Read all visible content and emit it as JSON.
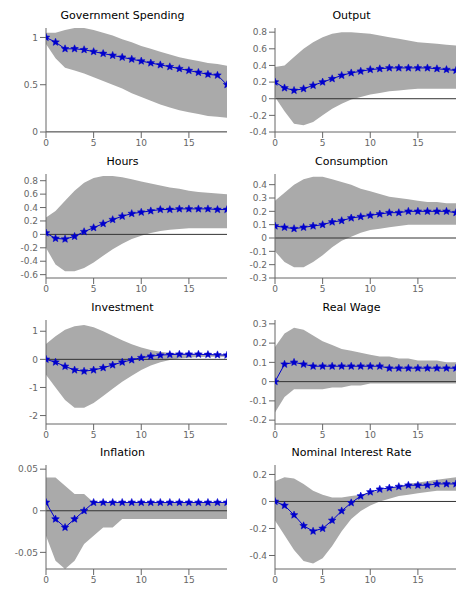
{
  "chart_data": [
    {
      "type": "line",
      "title": "Government Spending",
      "x": [
        0,
        1,
        2,
        3,
        4,
        5,
        6,
        7,
        8,
        9,
        10,
        11,
        12,
        13,
        14,
        15,
        16,
        17,
        18,
        19
      ],
      "xlim": [
        0,
        19
      ],
      "xticks": [
        0,
        5,
        10,
        15
      ],
      "ylim": [
        0,
        1.1
      ],
      "yticks": [
        0,
        0.5,
        1
      ],
      "grid": false,
      "series": [
        {
          "type": "area",
          "color": "#aaaaaa",
          "lower": [
            0.93,
            0.78,
            0.68,
            0.65,
            0.62,
            0.58,
            0.54,
            0.5,
            0.46,
            0.41,
            0.37,
            0.33,
            0.29,
            0.26,
            0.23,
            0.21,
            0.19,
            0.17,
            0.16,
            0.15
          ],
          "upper": [
            1.05,
            1.05,
            1.08,
            1.1,
            1.1,
            1.08,
            1.05,
            1.02,
            0.98,
            0.95,
            0.91,
            0.88,
            0.85,
            0.82,
            0.79,
            0.77,
            0.75,
            0.73,
            0.72,
            0.7
          ]
        },
        {
          "type": "hline",
          "y": 0,
          "color": "#333333"
        },
        {
          "type": "line",
          "color": "#0000cc",
          "marker": "star",
          "values": [
            1.0,
            0.95,
            0.88,
            0.88,
            0.87,
            0.85,
            0.83,
            0.81,
            0.79,
            0.77,
            0.75,
            0.73,
            0.71,
            0.69,
            0.67,
            0.65,
            0.63,
            0.61,
            0.6,
            0.5
          ]
        }
      ]
    },
    {
      "type": "line",
      "title": "Output",
      "x": [
        0,
        1,
        2,
        3,
        4,
        5,
        6,
        7,
        8,
        9,
        10,
        11,
        12,
        13,
        14,
        15,
        16,
        17,
        18,
        19
      ],
      "xlim": [
        0,
        19
      ],
      "xticks": [
        0,
        5,
        10,
        15
      ],
      "ylim": [
        -0.4,
        0.85
      ],
      "yticks": [
        -0.4,
        -0.2,
        0,
        0.2,
        0.4,
        0.6,
        0.8
      ],
      "grid": false,
      "series": [
        {
          "type": "area",
          "color": "#aaaaaa",
          "lower": [
            0.02,
            -0.15,
            -0.3,
            -0.32,
            -0.28,
            -0.2,
            -0.12,
            -0.06,
            -0.01,
            0.02,
            0.05,
            0.07,
            0.09,
            0.1,
            0.11,
            0.12,
            0.12,
            0.12,
            0.12,
            0.12
          ],
          "upper": [
            0.38,
            0.4,
            0.5,
            0.6,
            0.68,
            0.74,
            0.78,
            0.8,
            0.8,
            0.79,
            0.78,
            0.76,
            0.74,
            0.72,
            0.7,
            0.68,
            0.67,
            0.66,
            0.65,
            0.64
          ]
        },
        {
          "type": "hline",
          "y": 0,
          "color": "#333333"
        },
        {
          "type": "line",
          "color": "#0000cc",
          "marker": "star",
          "values": [
            0.2,
            0.13,
            0.1,
            0.12,
            0.16,
            0.2,
            0.24,
            0.28,
            0.31,
            0.33,
            0.35,
            0.36,
            0.37,
            0.37,
            0.37,
            0.37,
            0.37,
            0.36,
            0.35,
            0.34
          ]
        }
      ]
    },
    {
      "type": "line",
      "title": "Hours",
      "x": [
        0,
        1,
        2,
        3,
        4,
        5,
        6,
        7,
        8,
        9,
        10,
        11,
        12,
        13,
        14,
        15,
        16,
        17,
        18,
        19
      ],
      "xlim": [
        0,
        19
      ],
      "xticks": [
        0,
        5,
        10,
        15
      ],
      "ylim": [
        -0.65,
        0.9
      ],
      "yticks": [
        -0.6,
        -0.4,
        -0.2,
        0,
        0.2,
        0.4,
        0.6,
        0.8
      ],
      "grid": false,
      "series": [
        {
          "type": "area",
          "color": "#aaaaaa",
          "lower": [
            -0.2,
            -0.45,
            -0.55,
            -0.55,
            -0.5,
            -0.42,
            -0.32,
            -0.22,
            -0.14,
            -0.07,
            -0.02,
            0.02,
            0.05,
            0.07,
            0.08,
            0.09,
            0.09,
            0.09,
            0.09,
            0.09
          ],
          "upper": [
            0.25,
            0.35,
            0.5,
            0.65,
            0.77,
            0.84,
            0.87,
            0.87,
            0.85,
            0.82,
            0.79,
            0.76,
            0.73,
            0.7,
            0.68,
            0.65,
            0.63,
            0.62,
            0.61,
            0.6
          ]
        },
        {
          "type": "hline",
          "y": 0,
          "color": "#333333"
        },
        {
          "type": "line",
          "color": "#0000cc",
          "marker": "star",
          "values": [
            0.02,
            -0.06,
            -0.07,
            -0.03,
            0.04,
            0.1,
            0.16,
            0.22,
            0.27,
            0.31,
            0.33,
            0.35,
            0.37,
            0.37,
            0.38,
            0.38,
            0.38,
            0.38,
            0.37,
            0.37
          ]
        }
      ]
    },
    {
      "type": "line",
      "title": "Consumption",
      "x": [
        0,
        1,
        2,
        3,
        4,
        5,
        6,
        7,
        8,
        9,
        10,
        11,
        12,
        13,
        14,
        15,
        16,
        17,
        18,
        19
      ],
      "xlim": [
        0,
        19
      ],
      "xticks": [
        0,
        5,
        10,
        15
      ],
      "ylim": [
        -0.3,
        0.48
      ],
      "yticks": [
        -0.3,
        -0.2,
        -0.1,
        0,
        0.1,
        0.2,
        0.3,
        0.4
      ],
      "grid": false,
      "series": [
        {
          "type": "area",
          "color": "#aaaaaa",
          "lower": [
            -0.1,
            -0.18,
            -0.22,
            -0.22,
            -0.18,
            -0.13,
            -0.07,
            -0.02,
            0.01,
            0.04,
            0.06,
            0.07,
            0.08,
            0.09,
            0.1,
            0.1,
            0.1,
            0.1,
            0.1,
            0.1
          ],
          "upper": [
            0.28,
            0.34,
            0.4,
            0.44,
            0.46,
            0.46,
            0.44,
            0.42,
            0.4,
            0.37,
            0.35,
            0.33,
            0.31,
            0.3,
            0.29,
            0.28,
            0.27,
            0.27,
            0.26,
            0.26
          ]
        },
        {
          "type": "hline",
          "y": 0,
          "color": "#333333"
        },
        {
          "type": "line",
          "color": "#0000cc",
          "marker": "star",
          "values": [
            0.09,
            0.08,
            0.07,
            0.08,
            0.09,
            0.1,
            0.12,
            0.13,
            0.15,
            0.16,
            0.17,
            0.18,
            0.19,
            0.19,
            0.2,
            0.2,
            0.2,
            0.2,
            0.2,
            0.19
          ]
        }
      ]
    },
    {
      "type": "line",
      "title": "Investment",
      "x": [
        0,
        1,
        2,
        3,
        4,
        5,
        6,
        7,
        8,
        9,
        10,
        11,
        12,
        13,
        14,
        15,
        16,
        17,
        18,
        19
      ],
      "xlim": [
        0,
        19
      ],
      "xticks": [
        0,
        5,
        10,
        15
      ],
      "ylim": [
        -2.3,
        1.4
      ],
      "yticks": [
        -2,
        -1,
        0,
        1
      ],
      "grid": false,
      "series": [
        {
          "type": "area",
          "color": "#aaaaaa",
          "lower": [
            -0.55,
            -1.0,
            -1.45,
            -1.72,
            -1.72,
            -1.55,
            -1.3,
            -1.05,
            -0.8,
            -0.58,
            -0.38,
            -0.22,
            -0.1,
            -0.02,
            0.03,
            0.06,
            0.08,
            0.09,
            0.09,
            0.09
          ],
          "upper": [
            0.55,
            0.82,
            1.05,
            1.18,
            1.22,
            1.14,
            1.0,
            0.84,
            0.68,
            0.54,
            0.42,
            0.33,
            0.27,
            0.23,
            0.21,
            0.2,
            0.19,
            0.18,
            0.18,
            0.17
          ]
        },
        {
          "type": "hline",
          "y": 0,
          "color": "#333333"
        },
        {
          "type": "line",
          "color": "#0000cc",
          "marker": "star",
          "values": [
            0.0,
            -0.1,
            -0.25,
            -0.38,
            -0.42,
            -0.38,
            -0.3,
            -0.2,
            -0.1,
            -0.02,
            0.06,
            0.11,
            0.15,
            0.17,
            0.18,
            0.18,
            0.18,
            0.17,
            0.16,
            0.15
          ]
        }
      ]
    },
    {
      "type": "line",
      "title": "Real Wage",
      "x": [
        0,
        1,
        2,
        3,
        4,
        5,
        6,
        7,
        8,
        9,
        10,
        11,
        12,
        13,
        14,
        15,
        16,
        17,
        18,
        19
      ],
      "xlim": [
        0,
        19
      ],
      "xticks": [
        0,
        5,
        10,
        15
      ],
      "ylim": [
        -0.22,
        0.32
      ],
      "yticks": [
        -0.2,
        -0.1,
        0,
        0.1,
        0.2,
        0.3
      ],
      "grid": false,
      "series": [
        {
          "type": "area",
          "color": "#aaaaaa",
          "lower": [
            -0.16,
            -0.08,
            -0.04,
            -0.04,
            -0.04,
            -0.04,
            -0.03,
            -0.03,
            -0.02,
            -0.02,
            -0.01,
            -0.01,
            -0.01,
            -0.01,
            -0.01,
            -0.01,
            -0.01,
            -0.01,
            -0.01,
            -0.01
          ],
          "upper": [
            0.18,
            0.25,
            0.28,
            0.27,
            0.24,
            0.21,
            0.19,
            0.17,
            0.16,
            0.15,
            0.14,
            0.13,
            0.13,
            0.12,
            0.12,
            0.11,
            0.11,
            0.11,
            0.1,
            0.1
          ]
        },
        {
          "type": "hline",
          "y": 0,
          "color": "#333333"
        },
        {
          "type": "line",
          "color": "#0000cc",
          "marker": "star",
          "values": [
            0.0,
            0.09,
            0.1,
            0.09,
            0.08,
            0.08,
            0.08,
            0.08,
            0.08,
            0.08,
            0.08,
            0.08,
            0.07,
            0.07,
            0.07,
            0.07,
            0.07,
            0.07,
            0.07,
            0.07
          ]
        }
      ]
    },
    {
      "type": "line",
      "title": "Inflation",
      "x": [
        0,
        1,
        2,
        3,
        4,
        5,
        6,
        7,
        8,
        9,
        10,
        11,
        12,
        13,
        14,
        15,
        16,
        17,
        18,
        19
      ],
      "xlim": [
        0,
        19
      ],
      "xticks": [
        0,
        5,
        10,
        15
      ],
      "ylim": [
        -0.07,
        0.055
      ],
      "yticks": [
        -0.05,
        0,
        0.05
      ],
      "grid": false,
      "series": [
        {
          "type": "area",
          "color": "#aaaaaa",
          "lower": [
            -0.03,
            -0.06,
            -0.07,
            -0.06,
            -0.04,
            -0.03,
            -0.02,
            -0.02,
            -0.01,
            -0.01,
            -0.01,
            -0.01,
            -0.01,
            -0.01,
            -0.01,
            -0.01,
            -0.01,
            -0.01,
            -0.01,
            -0.01
          ],
          "upper": [
            0.04,
            0.04,
            0.03,
            0.02,
            0.02,
            0.01,
            0.01,
            0.01,
            0.01,
            0.01,
            0.01,
            0.01,
            0.01,
            0.01,
            0.01,
            0.01,
            0.01,
            0.01,
            0.01,
            0.01
          ]
        },
        {
          "type": "hline",
          "y": 0,
          "color": "#333333"
        },
        {
          "type": "line",
          "color": "#0000cc",
          "marker": "star",
          "values": [
            0.01,
            -0.01,
            -0.02,
            -0.01,
            0.0,
            0.01,
            0.01,
            0.01,
            0.01,
            0.01,
            0.01,
            0.01,
            0.01,
            0.01,
            0.01,
            0.01,
            0.01,
            0.01,
            0.01,
            0.01
          ]
        }
      ]
    },
    {
      "type": "line",
      "title": "Nominal Interest Rate",
      "x": [
        0,
        1,
        2,
        3,
        4,
        5,
        6,
        7,
        8,
        9,
        10,
        11,
        12,
        13,
        14,
        15,
        16,
        17,
        18,
        19
      ],
      "xlim": [
        0,
        19
      ],
      "xticks": [
        0,
        5,
        10,
        15
      ],
      "ylim": [
        -0.5,
        0.27
      ],
      "yticks": [
        -0.4,
        -0.2,
        0,
        0.2
      ],
      "grid": false,
      "series": [
        {
          "type": "area",
          "color": "#aaaaaa",
          "lower": [
            -0.14,
            -0.25,
            -0.36,
            -0.44,
            -0.46,
            -0.42,
            -0.33,
            -0.22,
            -0.13,
            -0.07,
            -0.03,
            0.0,
            0.02,
            0.04,
            0.05,
            0.06,
            0.07,
            0.08,
            0.08,
            0.08
          ],
          "upper": [
            0.15,
            0.18,
            0.17,
            0.13,
            0.08,
            0.05,
            0.03,
            0.03,
            0.04,
            0.05,
            0.07,
            0.08,
            0.1,
            0.11,
            0.13,
            0.14,
            0.15,
            0.16,
            0.17,
            0.18
          ]
        },
        {
          "type": "hline",
          "y": 0,
          "color": "#333333"
        },
        {
          "type": "line",
          "color": "#0000cc",
          "marker": "star",
          "values": [
            0.0,
            -0.03,
            -0.1,
            -0.18,
            -0.22,
            -0.2,
            -0.14,
            -0.07,
            -0.01,
            0.04,
            0.07,
            0.09,
            0.1,
            0.11,
            0.12,
            0.12,
            0.12,
            0.13,
            0.13,
            0.13
          ]
        }
      ]
    }
  ]
}
